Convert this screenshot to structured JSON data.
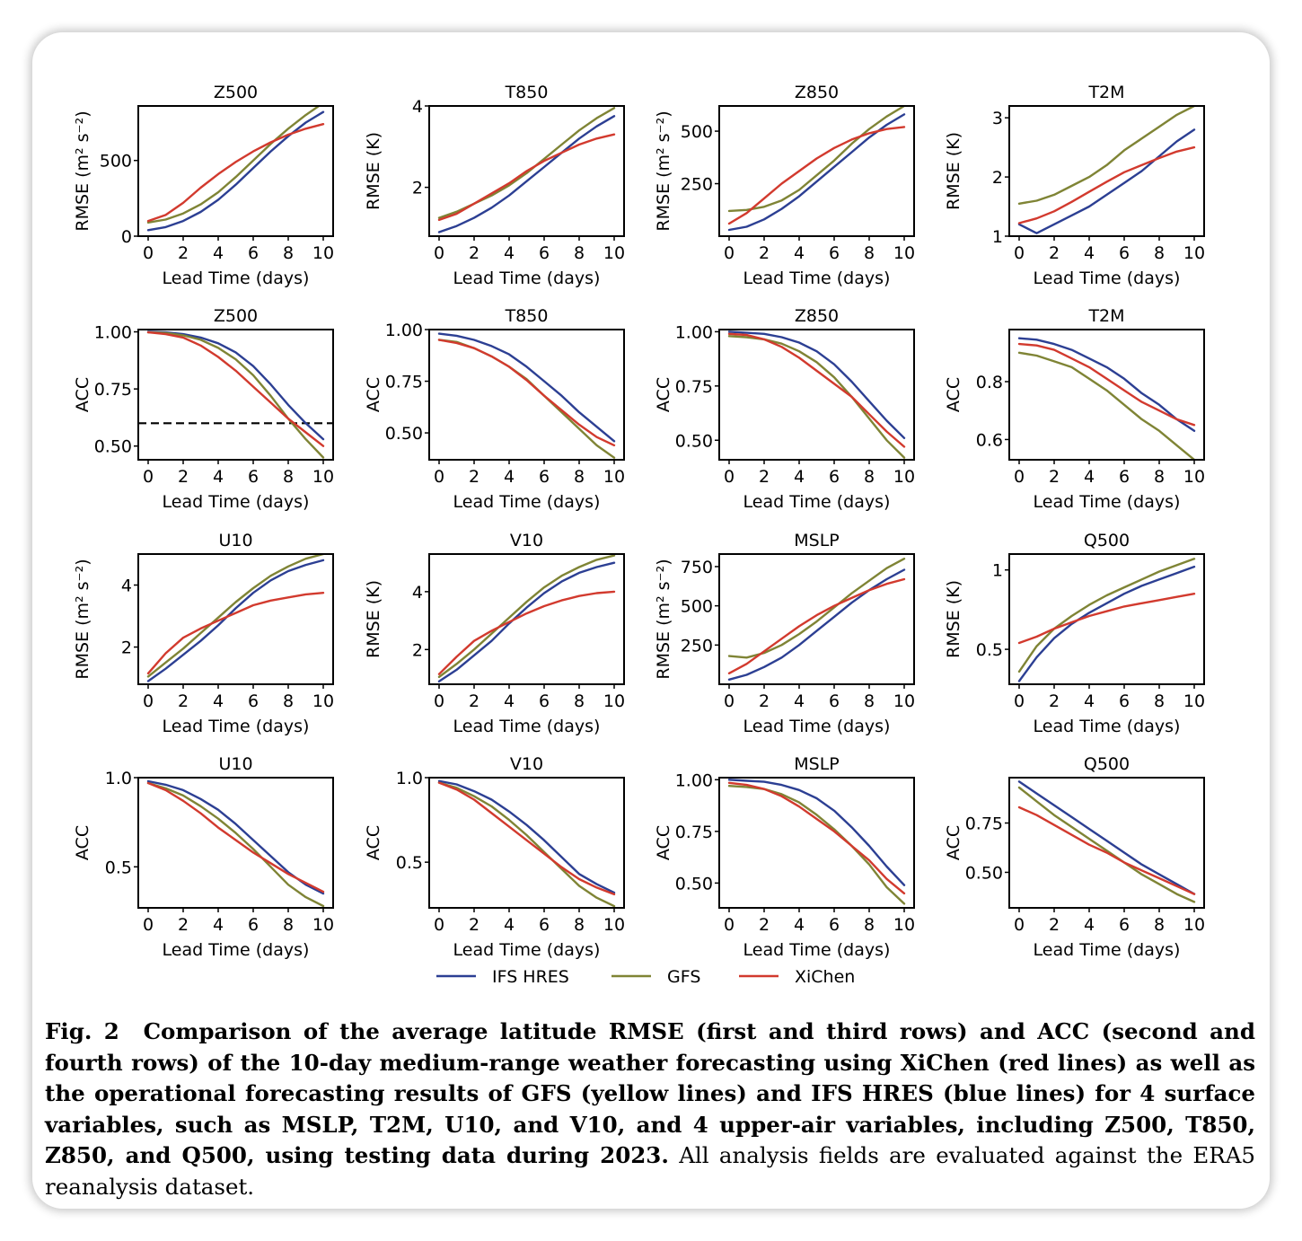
{
  "chart_data": {
    "type": "line",
    "x": [
      0,
      1,
      2,
      3,
      4,
      5,
      6,
      7,
      8,
      9,
      10
    ],
    "xticks": [
      0,
      2,
      4,
      6,
      8,
      10
    ],
    "xlabel": "Lead Time (days)",
    "colors": {
      "IFS HRES": "#2c3f93",
      "GFS": "#7f8435",
      "XiChen": "#d23a2e"
    },
    "legend": [
      "IFS HRES",
      "GFS",
      "XiChen"
    ],
    "legend_position": "bottom-center",
    "panels": [
      {
        "title": "Z500",
        "ylabel": "RMSE (m² s⁻²)",
        "ylim": [
          0,
          860
        ],
        "yticks": [
          0,
          500
        ],
        "series": [
          {
            "name": "IFS HRES",
            "values": [
              40,
              60,
              100,
              160,
              240,
              340,
              450,
              560,
              660,
              750,
              820
            ]
          },
          {
            "name": "GFS",
            "values": [
              90,
              110,
              150,
              210,
              290,
              390,
              500,
              610,
              710,
              800,
              880
            ]
          },
          {
            "name": "XiChen",
            "values": [
              100,
              140,
              220,
              320,
              410,
              490,
              560,
              620,
              670,
              710,
              740
            ]
          }
        ]
      },
      {
        "title": "T850",
        "ylabel": "RMSE (K)",
        "ylim": [
          0.8,
          4.0
        ],
        "yticks": [
          2,
          4
        ],
        "series": [
          {
            "name": "IFS HRES",
            "values": [
              0.9,
              1.05,
              1.25,
              1.5,
              1.8,
              2.15,
              2.5,
              2.85,
              3.2,
              3.5,
              3.75
            ]
          },
          {
            "name": "GFS",
            "values": [
              1.25,
              1.4,
              1.6,
              1.8,
              2.05,
              2.35,
              2.7,
              3.05,
              3.4,
              3.7,
              3.95
            ]
          },
          {
            "name": "XiChen",
            "values": [
              1.2,
              1.35,
              1.6,
              1.85,
              2.1,
              2.4,
              2.65,
              2.85,
              3.05,
              3.2,
              3.3
            ]
          }
        ]
      },
      {
        "title": "Z850",
        "ylabel": "RMSE (m² s⁻²)",
        "ylim": [
          0,
          620
        ],
        "yticks": [
          250,
          500
        ],
        "series": [
          {
            "name": "IFS HRES",
            "values": [
              30,
              45,
              80,
              130,
              190,
              260,
              330,
              400,
              470,
              530,
              580
            ]
          },
          {
            "name": "GFS",
            "values": [
              120,
              125,
              140,
              170,
              220,
              290,
              360,
              440,
              510,
              570,
              620
            ]
          },
          {
            "name": "XiChen",
            "values": [
              60,
              110,
              180,
              250,
              310,
              370,
              420,
              460,
              490,
              510,
              520
            ]
          }
        ]
      },
      {
        "title": "T2M",
        "ylabel": "RMSE (K)",
        "ylim": [
          1.0,
          3.2
        ],
        "yticks": [
          1,
          2,
          3
        ],
        "series": [
          {
            "name": "IFS HRES",
            "values": [
              1.2,
              1.05,
              1.2,
              1.35,
              1.5,
              1.7,
              1.9,
              2.1,
              2.35,
              2.6,
              2.8
            ]
          },
          {
            "name": "GFS",
            "values": [
              1.55,
              1.6,
              1.7,
              1.85,
              2.0,
              2.2,
              2.45,
              2.65,
              2.85,
              3.05,
              3.2
            ]
          },
          {
            "name": "XiChen",
            "values": [
              1.22,
              1.3,
              1.42,
              1.58,
              1.75,
              1.92,
              2.08,
              2.2,
              2.32,
              2.43,
              2.5
            ]
          }
        ]
      },
      {
        "title": "Z500",
        "ylabel": "ACC",
        "ylim": [
          0.44,
          1.01
        ],
        "yticks": [
          0.5,
          0.75,
          1.0
        ],
        "ref_line": 0.6,
        "series": [
          {
            "name": "IFS HRES",
            "values": [
              1.0,
              0.998,
              0.99,
              0.975,
              0.95,
              0.91,
              0.85,
              0.77,
              0.68,
              0.6,
              0.53
            ]
          },
          {
            "name": "GFS",
            "values": [
              0.998,
              0.995,
              0.985,
              0.965,
              0.93,
              0.88,
              0.81,
              0.72,
              0.62,
              0.53,
              0.45
            ]
          },
          {
            "name": "XiChen",
            "values": [
              0.998,
              0.99,
              0.975,
              0.94,
              0.89,
              0.83,
              0.76,
              0.69,
              0.62,
              0.56,
              0.5
            ]
          }
        ]
      },
      {
        "title": "T850",
        "ylabel": "ACC",
        "ylim": [
          0.37,
          1.0
        ],
        "yticks": [
          0.5,
          0.75,
          1.0
        ],
        "series": [
          {
            "name": "IFS HRES",
            "values": [
              0.98,
              0.97,
              0.95,
              0.92,
              0.88,
              0.82,
              0.75,
              0.68,
              0.6,
              0.53,
              0.46
            ]
          },
          {
            "name": "GFS",
            "values": [
              0.95,
              0.94,
              0.91,
              0.87,
              0.82,
              0.76,
              0.68,
              0.6,
              0.52,
              0.44,
              0.38
            ]
          },
          {
            "name": "XiChen",
            "values": [
              0.95,
              0.935,
              0.91,
              0.87,
              0.82,
              0.755,
              0.68,
              0.61,
              0.54,
              0.48,
              0.44
            ]
          }
        ]
      },
      {
        "title": "Z850",
        "ylabel": "ACC",
        "ylim": [
          0.41,
          1.01
        ],
        "yticks": [
          0.5,
          0.75,
          1.0
        ],
        "series": [
          {
            "name": "IFS HRES",
            "values": [
              1.0,
              0.995,
              0.99,
              0.975,
              0.95,
              0.91,
              0.85,
              0.77,
              0.68,
              0.59,
              0.51
            ]
          },
          {
            "name": "GFS",
            "values": [
              0.98,
              0.975,
              0.965,
              0.945,
              0.91,
              0.86,
              0.79,
              0.7,
              0.6,
              0.5,
              0.42
            ]
          },
          {
            "name": "XiChen",
            "values": [
              0.99,
              0.985,
              0.965,
              0.93,
              0.88,
              0.82,
              0.76,
              0.7,
              0.62,
              0.54,
              0.47
            ]
          }
        ]
      },
      {
        "title": "T2M",
        "ylabel": "ACC",
        "ylim": [
          0.53,
          0.98
        ],
        "yticks": [
          0.6,
          0.8
        ],
        "series": [
          {
            "name": "IFS HRES",
            "values": [
              0.95,
              0.945,
              0.93,
              0.91,
              0.88,
              0.85,
              0.81,
              0.76,
              0.72,
              0.67,
              0.63
            ]
          },
          {
            "name": "GFS",
            "values": [
              0.9,
              0.89,
              0.87,
              0.85,
              0.81,
              0.77,
              0.72,
              0.67,
              0.63,
              0.58,
              0.53
            ]
          },
          {
            "name": "XiChen",
            "values": [
              0.93,
              0.925,
              0.91,
              0.88,
              0.85,
              0.81,
              0.77,
              0.73,
              0.7,
              0.67,
              0.65
            ]
          }
        ]
      },
      {
        "title": "U10",
        "ylabel": "RMSE (m² s⁻²)",
        "ylim": [
          0.8,
          5.0
        ],
        "yticks": [
          2,
          4
        ],
        "series": [
          {
            "name": "IFS HRES",
            "values": [
              0.9,
              1.3,
              1.75,
              2.2,
              2.7,
              3.25,
              3.75,
              4.15,
              4.45,
              4.65,
              4.8
            ]
          },
          {
            "name": "GFS",
            "values": [
              1.05,
              1.5,
              1.95,
              2.45,
              2.95,
              3.45,
              3.9,
              4.3,
              4.6,
              4.85,
              5.0
            ]
          },
          {
            "name": "XiChen",
            "values": [
              1.15,
              1.8,
              2.3,
              2.6,
              2.85,
              3.1,
              3.35,
              3.5,
              3.6,
              3.7,
              3.75
            ]
          }
        ]
      },
      {
        "title": "V10",
        "ylabel": "RMSE (K)",
        "ylim": [
          0.8,
          5.3
        ],
        "yticks": [
          2,
          4
        ],
        "series": [
          {
            "name": "IFS HRES",
            "values": [
              0.9,
              1.3,
              1.8,
              2.3,
              2.9,
              3.45,
              3.95,
              4.35,
              4.65,
              4.85,
              5.0
            ]
          },
          {
            "name": "GFS",
            "values": [
              1.05,
              1.5,
              2.0,
              2.55,
              3.1,
              3.65,
              4.15,
              4.55,
              4.85,
              5.1,
              5.25
            ]
          },
          {
            "name": "XiChen",
            "values": [
              1.15,
              1.75,
              2.3,
              2.65,
              2.95,
              3.25,
              3.5,
              3.7,
              3.85,
              3.95,
              4.0
            ]
          }
        ]
      },
      {
        "title": "MSLP",
        "ylabel": "RMSE (m² s⁻²)",
        "ylim": [
          0,
          830
        ],
        "yticks": [
          250,
          500,
          750
        ],
        "series": [
          {
            "name": "IFS HRES",
            "values": [
              30,
              60,
              110,
              170,
              250,
              340,
              430,
              520,
              600,
              670,
              730
            ]
          },
          {
            "name": "GFS",
            "values": [
              180,
              170,
              200,
              250,
              320,
              400,
              490,
              580,
              660,
              740,
              800
            ]
          },
          {
            "name": "XiChen",
            "values": [
              70,
              130,
              210,
              290,
              370,
              440,
              500,
              550,
              600,
              640,
              670
            ]
          }
        ]
      },
      {
        "title": "Q500",
        "ylabel": "RMSE (K)",
        "ylim": [
          0.28,
          1.1
        ],
        "yticks": [
          0.5,
          1.0
        ],
        "series": [
          {
            "name": "IFS HRES",
            "values": [
              0.3,
              0.45,
              0.57,
              0.66,
              0.73,
              0.79,
              0.85,
              0.9,
              0.94,
              0.98,
              1.02
            ]
          },
          {
            "name": "GFS",
            "values": [
              0.36,
              0.52,
              0.63,
              0.71,
              0.78,
              0.84,
              0.89,
              0.94,
              0.99,
              1.03,
              1.07
            ]
          },
          {
            "name": "XiChen",
            "values": [
              0.54,
              0.58,
              0.63,
              0.67,
              0.71,
              0.74,
              0.77,
              0.79,
              0.81,
              0.83,
              0.85
            ]
          }
        ]
      },
      {
        "title": "U10",
        "ylabel": "ACC",
        "ylim": [
          0.27,
          1.0
        ],
        "yticks": [
          0.5,
          1.0
        ],
        "series": [
          {
            "name": "IFS HRES",
            "values": [
              0.98,
              0.96,
              0.93,
              0.88,
              0.82,
              0.74,
              0.65,
              0.56,
              0.47,
              0.4,
              0.35
            ]
          },
          {
            "name": "GFS",
            "values": [
              0.97,
              0.94,
              0.9,
              0.84,
              0.77,
              0.69,
              0.6,
              0.5,
              0.4,
              0.33,
              0.28
            ]
          },
          {
            "name": "XiChen",
            "values": [
              0.97,
              0.93,
              0.87,
              0.8,
              0.72,
              0.65,
              0.58,
              0.52,
              0.46,
              0.41,
              0.36
            ]
          }
        ]
      },
      {
        "title": "V10",
        "ylabel": "ACC",
        "ylim": [
          0.23,
          1.0
        ],
        "yticks": [
          0.5,
          1.0
        ],
        "series": [
          {
            "name": "IFS HRES",
            "values": [
              0.98,
              0.96,
              0.92,
              0.87,
              0.8,
              0.72,
              0.63,
              0.53,
              0.43,
              0.37,
              0.32
            ]
          },
          {
            "name": "GFS",
            "values": [
              0.97,
              0.94,
              0.89,
              0.83,
              0.75,
              0.66,
              0.56,
              0.46,
              0.36,
              0.29,
              0.24
            ]
          },
          {
            "name": "XiChen",
            "values": [
              0.97,
              0.93,
              0.87,
              0.79,
              0.71,
              0.63,
              0.55,
              0.47,
              0.4,
              0.35,
              0.31
            ]
          }
        ]
      },
      {
        "title": "MSLP",
        "ylabel": "ACC",
        "ylim": [
          0.38,
          1.01
        ],
        "yticks": [
          0.5,
          0.75,
          1.0
        ],
        "series": [
          {
            "name": "IFS HRES",
            "values": [
              1.0,
              0.995,
              0.99,
              0.975,
              0.95,
              0.91,
              0.85,
              0.77,
              0.68,
              0.58,
              0.49
            ]
          },
          {
            "name": "GFS",
            "values": [
              0.97,
              0.965,
              0.955,
              0.93,
              0.89,
              0.83,
              0.76,
              0.68,
              0.59,
              0.48,
              0.4
            ]
          },
          {
            "name": "XiChen",
            "values": [
              0.985,
              0.975,
              0.955,
              0.92,
              0.87,
              0.81,
              0.75,
              0.68,
              0.61,
              0.52,
              0.45
            ]
          }
        ]
      },
      {
        "title": "Q500",
        "ylabel": "ACC",
        "ylim": [
          0.32,
          0.98
        ],
        "yticks": [
          0.5,
          0.75
        ],
        "series": [
          {
            "name": "IFS HRES",
            "values": [
              0.96,
              0.9,
              0.84,
              0.78,
              0.72,
              0.66,
              0.6,
              0.54,
              0.49,
              0.44,
              0.39
            ]
          },
          {
            "name": "GFS",
            "values": [
              0.93,
              0.86,
              0.79,
              0.73,
              0.67,
              0.61,
              0.55,
              0.49,
              0.44,
              0.39,
              0.35
            ]
          },
          {
            "name": "XiChen",
            "values": [
              0.83,
              0.79,
              0.74,
              0.69,
              0.64,
              0.6,
              0.55,
              0.51,
              0.47,
              0.43,
              0.39
            ]
          }
        ]
      }
    ]
  },
  "caption": {
    "label": "Fig. 2",
    "bold_text": "Comparison of the average latitude RMSE (first and third rows) and ACC (second and fourth rows) of the 10-day medium-range weather forecasting using XiChen (red lines) as well as the operational forecasting results of GFS (yellow lines) and IFS HRES (blue lines) for 4 surface variables, such as MSLP, T2M, U10, and V10, and 4 upper-air variables, including Z500, T850, Z850, and Q500, using testing data during 2023.",
    "normal_text": "All analysis fields are evaluated against the ERA5 reanalysis dataset."
  }
}
